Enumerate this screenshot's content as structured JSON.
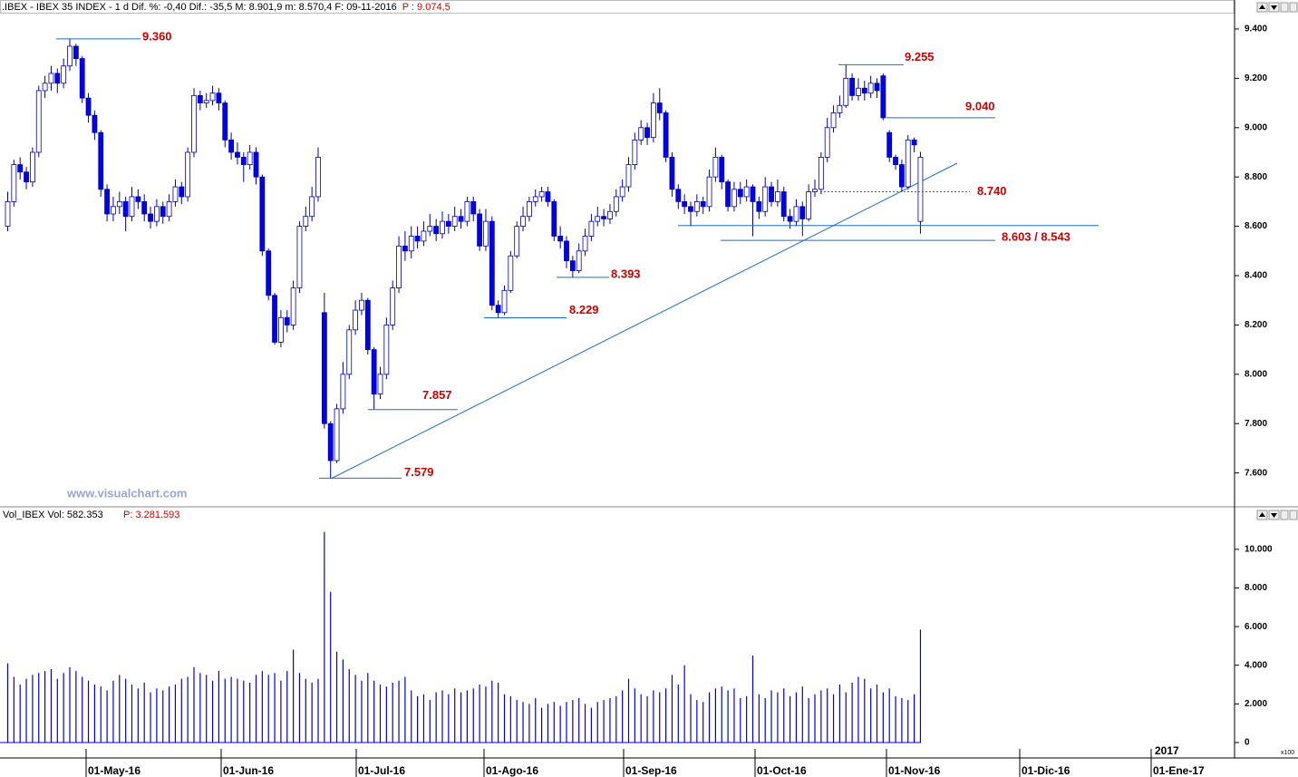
{
  "chart_data": [
    {
      "type": "candlestick",
      "title": ".IBEX - IBEX 35 INDEX - 1 d  Dif. %: -0,40  Dif.: -35,5  M: 8.901,9  m: 8.570,4  F: 09-11-2016",
      "subtitle": "P : 9.074,5",
      "watermark": "www.visualchart.com",
      "color_up": "#ffffff",
      "color_down": "#0000ee",
      "outline": "#0000aa",
      "open": [
        8600,
        8700,
        8850,
        8820,
        8780,
        8900,
        9150,
        9180,
        9220,
        9180,
        9250,
        9330,
        9280,
        9120,
        9050,
        8980,
        8750,
        8650,
        8680,
        8700,
        8640,
        8720,
        8700,
        8650,
        8620,
        8680,
        8640,
        8700,
        8760,
        8720,
        8900,
        9130,
        9100,
        9110,
        9140,
        9100,
        8950,
        8900,
        8880,
        8850,
        8900,
        8800,
        8500,
        8320,
        8130,
        8230,
        8200,
        8350,
        8600,
        8640,
        8720,
        8250,
        7800,
        7650,
        7860,
        8000,
        8180,
        8260,
        8300,
        8100,
        7920,
        8000,
        8200,
        8350,
        8520,
        8500,
        8560,
        8540,
        8580,
        8600,
        8570,
        8620,
        8600,
        8640,
        8620,
        8700,
        8650,
        8520,
        8620,
        8280,
        8250,
        8340,
        8480,
        8600,
        8640,
        8700,
        8720,
        8740,
        8700,
        8560,
        8540,
        8460,
        8420,
        8500,
        8560,
        8620,
        8640,
        8630,
        8660,
        8720,
        8760,
        8850,
        8950,
        9000,
        8960,
        9100,
        9060,
        8880,
        8750,
        8700,
        8680,
        8660,
        8700,
        8680,
        8800,
        8880,
        8780,
        8680,
        8750,
        8720,
        8760,
        8700,
        8660,
        8760,
        8700,
        8740,
        8640,
        8620,
        8680,
        8630,
        8740,
        8750,
        8880,
        9000,
        9060,
        9090,
        9200,
        9130,
        9160,
        9140,
        9180,
        9210,
        8980,
        8880,
        8850,
        8760,
        8950,
        8620
      ],
      "high": [
        8740,
        8870,
        8880,
        8840,
        8920,
        9170,
        9210,
        9250,
        9240,
        9280,
        9360,
        9340,
        9290,
        9140,
        9070,
        8990,
        8770,
        8720,
        8740,
        8720,
        8760,
        8750,
        8730,
        8680,
        8710,
        8700,
        8730,
        8790,
        8780,
        8920,
        9160,
        9150,
        9140,
        9170,
        9160,
        9110,
        8980,
        8940,
        8900,
        8930,
        8920,
        8810,
        8510,
        8330,
        8260,
        8260,
        8380,
        8620,
        8680,
        8760,
        8920,
        8330,
        7810,
        7880,
        8050,
        8200,
        8300,
        8330,
        8310,
        8110,
        8030,
        8230,
        8380,
        8560,
        8580,
        8600,
        8600,
        8620,
        8650,
        8630,
        8660,
        8650,
        8680,
        8670,
        8720,
        8720,
        8670,
        8670,
        8640,
        8300,
        8360,
        8500,
        8620,
        8680,
        8720,
        8750,
        8760,
        8760,
        8710,
        8600,
        8560,
        8480,
        8530,
        8590,
        8650,
        8680,
        8670,
        8690,
        8750,
        8790,
        8880,
        8980,
        9030,
        9020,
        9140,
        9160,
        9070,
        8900,
        8770,
        8730,
        8700,
        8730,
        8720,
        8830,
        8920,
        8890,
        8790,
        8780,
        8780,
        8790,
        8770,
        8720,
        8800,
        8780,
        8790,
        8760,
        8670,
        8710,
        8700,
        8770,
        8790,
        8900,
        9040,
        9090,
        9130,
        9255,
        9220,
        9200,
        9190,
        9210,
        9200,
        9220,
        8990,
        8890,
        8870,
        8970,
        8960,
        8902
      ],
      "low": [
        8580,
        8680,
        8790,
        8750,
        8760,
        8880,
        9120,
        9150,
        9140,
        9160,
        9230,
        9250,
        9100,
        9020,
        8950,
        8720,
        8620,
        8620,
        8650,
        8580,
        8620,
        8670,
        8620,
        8590,
        8600,
        8610,
        8620,
        8680,
        8690,
        8700,
        8880,
        9070,
        9080,
        9090,
        9070,
        8920,
        8870,
        8850,
        8780,
        8830,
        8770,
        8480,
        8300,
        8120,
        8110,
        8170,
        8180,
        8330,
        8580,
        8620,
        8700,
        7780,
        7579,
        7640,
        7840,
        7980,
        8160,
        8240,
        8080,
        7857,
        7900,
        7980,
        8180,
        8330,
        8460,
        8470,
        8510,
        8520,
        8560,
        8540,
        8550,
        8570,
        8580,
        8590,
        8600,
        8620,
        8500,
        8500,
        8260,
        8229,
        8240,
        8330,
        8470,
        8580,
        8620,
        8680,
        8700,
        8680,
        8540,
        8510,
        8430,
        8393,
        8410,
        8480,
        8540,
        8600,
        8600,
        8610,
        8640,
        8700,
        8740,
        8830,
        8930,
        8930,
        8940,
        9030,
        8860,
        8720,
        8670,
        8650,
        8600,
        8640,
        8650,
        8660,
        8780,
        8750,
        8660,
        8660,
        8690,
        8700,
        8560,
        8630,
        8640,
        8680,
        8680,
        8620,
        8590,
        8600,
        8560,
        8620,
        8720,
        8730,
        8860,
        8980,
        9040,
        9080,
        9110,
        9110,
        9110,
        9120,
        9120,
        9030,
        8860,
        8830,
        8740,
        8750,
        8900,
        8570
      ],
      "close": [
        8700,
        8850,
        8820,
        8780,
        8900,
        9150,
        9180,
        9220,
        9180,
        9250,
        9330,
        9280,
        9120,
        9050,
        8980,
        8750,
        8650,
        8680,
        8700,
        8640,
        8720,
        8700,
        8650,
        8620,
        8680,
        8640,
        8700,
        8760,
        8720,
        8900,
        9130,
        9100,
        9110,
        9140,
        9100,
        8950,
        8900,
        8880,
        8850,
        8900,
        8800,
        8500,
        8320,
        8130,
        8230,
        8200,
        8350,
        8600,
        8640,
        8720,
        8880,
        7800,
        7650,
        7860,
        8000,
        8180,
        8260,
        8300,
        8100,
        7920,
        8000,
        8200,
        8350,
        8520,
        8500,
        8560,
        8540,
        8580,
        8600,
        8570,
        8620,
        8600,
        8640,
        8620,
        8700,
        8650,
        8520,
        8620,
        8280,
        8250,
        8340,
        8480,
        8600,
        8640,
        8700,
        8720,
        8740,
        8700,
        8560,
        8540,
        8460,
        8420,
        8500,
        8560,
        8620,
        8640,
        8630,
        8660,
        8720,
        8760,
        8850,
        8950,
        9000,
        8960,
        9100,
        9060,
        8880,
        8750,
        8700,
        8680,
        8660,
        8700,
        8680,
        8800,
        8880,
        8780,
        8680,
        8750,
        8720,
        8760,
        8700,
        8660,
        8760,
        8700,
        8740,
        8640,
        8620,
        8680,
        8630,
        8740,
        8750,
        8880,
        9000,
        9060,
        9090,
        9200,
        9130,
        9160,
        9140,
        9180,
        9150,
        9040,
        8880,
        8850,
        8760,
        8950,
        8930,
        8880
      ],
      "ylim": [
        7470,
        9466
      ],
      "yticks": [
        {
          "value": 7600,
          "label": "7.600"
        },
        {
          "value": 7800,
          "label": "7.800"
        },
        {
          "value": 8000,
          "label": "8.000"
        },
        {
          "value": 8200,
          "label": "8.200"
        },
        {
          "value": 8400,
          "label": "8.400"
        },
        {
          "value": 8600,
          "label": "8.600"
        },
        {
          "value": 8800,
          "label": "8.800"
        },
        {
          "value": 9000,
          "label": "9.000"
        },
        {
          "value": 9200,
          "label": "9.200"
        },
        {
          "value": 9400,
          "label": "9.400"
        }
      ],
      "annotations": [
        {
          "label": "9.360",
          "values": [
            9360
          ]
        },
        {
          "label": "9.255",
          "values": [
            9255
          ]
        },
        {
          "label": "9.040",
          "values": [
            9040
          ]
        },
        {
          "label": "8.740",
          "values": [
            8740
          ],
          "dashed": true
        },
        {
          "label": "8.603 / 8.543",
          "values": [
            8603,
            8543
          ]
        },
        {
          "label": "8.393",
          "values": [
            8393
          ]
        },
        {
          "label": "8.229",
          "values": [
            8229
          ]
        },
        {
          "label": "7.857",
          "values": [
            7857
          ]
        },
        {
          "label": "7.579",
          "values": [
            7579
          ]
        }
      ],
      "xlabels": [
        "01-May-16",
        "01-Jun-16",
        "01-Jul-16",
        "01-Ago-16",
        "01-Sep-16",
        "01-Oct-16",
        "01-Nov-16",
        "01-Dic-16",
        "01-Ene-17"
      ]
    },
    {
      "type": "bar",
      "title": "Vol_IBEX Vol: 582.353",
      "subtitle": "P: 3.281.593",
      "color": "#0000dd",
      "values": [
        4100,
        3400,
        3000,
        3300,
        3500,
        3600,
        3700,
        3800,
        3300,
        3600,
        3900,
        3700,
        3400,
        3200,
        3000,
        2900,
        2700,
        3200,
        3500,
        3300,
        3000,
        2800,
        3100,
        2600,
        2800,
        2700,
        2900,
        3000,
        3300,
        3400,
        3900,
        3600,
        3500,
        3200,
        3700,
        3300,
        3400,
        3300,
        3200,
        3100,
        3500,
        3700,
        3500,
        3600,
        3200,
        3700,
        4800,
        3600,
        3300,
        3100,
        3300,
        10900,
        7800,
        4700,
        4300,
        3800,
        3500,
        3200,
        3600,
        3200,
        3000,
        2900,
        3100,
        3200,
        3400,
        2700,
        2400,
        2500,
        2200,
        2600,
        2700,
        2500,
        2800,
        2600,
        2700,
        2800,
        3000,
        2900,
        3200,
        3100,
        2500,
        2400,
        2200,
        2100,
        2000,
        2300,
        1800,
        2000,
        2100,
        1900,
        2100,
        2200,
        2300,
        2000,
        1800,
        2100,
        2200,
        2300,
        2400,
        2700,
        3300,
        2800,
        2500,
        2400,
        2700,
        2600,
        2800,
        3500,
        3000,
        4000,
        2500,
        2200,
        2100,
        2600,
        2800,
        2900,
        2700,
        2800,
        2300,
        2400,
        4500,
        2500,
        2300,
        2700,
        2600,
        2800,
        2400,
        2600,
        2900,
        2300,
        2500,
        2700,
        2800,
        2500,
        3000,
        2600,
        3100,
        3400,
        3300,
        2800,
        3000,
        2600,
        2800,
        2400,
        2300,
        2200,
        2500,
        5850
      ],
      "ylim": [
        -800,
        11450
      ],
      "yticks": [
        0,
        {
          "value": 2000,
          "label": "2.000"
        },
        {
          "value": 4000,
          "label": "4.000"
        },
        {
          "value": 6000,
          "label": "6.000"
        },
        {
          "value": 8000,
          "label": "8.000"
        },
        {
          "value": 10000,
          "label": "10.000"
        }
      ],
      "year_label": "2017",
      "unit_label": "x100"
    }
  ]
}
